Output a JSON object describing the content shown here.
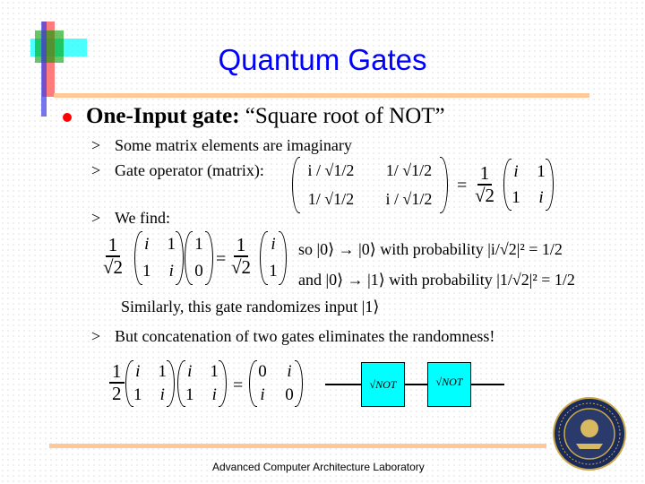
{
  "title": "Quantum Gates",
  "heading": {
    "bold": "One-Input  gate:",
    "rest": " “Square root of NOT”"
  },
  "bullets": [
    "Some matrix elements are imaginary",
    "Gate operator (matrix):",
    "We find:",
    "But  concatenation of two gates eliminates the randomness!"
  ],
  "sub_marker": ">",
  "gate_matrix": {
    "cells": [
      "i / √1/2",
      "1/ √1/2",
      "1/ √1/2",
      "i / √1/2"
    ],
    "equals": "=",
    "coef_num": "1",
    "coef_den": "√2",
    "rhs": [
      "i",
      "1",
      "1",
      "i"
    ]
  },
  "find": {
    "coef_num": "1",
    "coef_den": "√2",
    "matrix": [
      "i",
      "1",
      "1",
      "i"
    ],
    "vector": [
      "1",
      "0"
    ],
    "equals": "=",
    "result": [
      "i",
      "1"
    ],
    "line1": "so |0⟩ → |0⟩ with probability  |i/√2|² =  1/2",
    "line2": "and  |0⟩ → |1⟩ with probability |1/√2|² = 1/2",
    "similarly": "Similarly, this gate  randomizes input |1⟩"
  },
  "concat": {
    "coef_num": "1",
    "coef_den": "2",
    "m1": [
      "i",
      "1",
      "1",
      "i"
    ],
    "m2": [
      "i",
      "1",
      "1",
      "i"
    ],
    "equals": "=",
    "result": [
      "0",
      "i",
      "i",
      "0"
    ]
  },
  "circuit": {
    "gate_label": "√NOT",
    "gate_color": "#00ffff"
  },
  "footer": "Advanced Computer Architecture Laboratory",
  "seal": {
    "text": "THE UNIVERSITY OF MICHIGAN",
    "year": "1817"
  },
  "colors": {
    "title": "#0000ff",
    "bullet": "#ff0000",
    "rule": "#ffc896"
  }
}
